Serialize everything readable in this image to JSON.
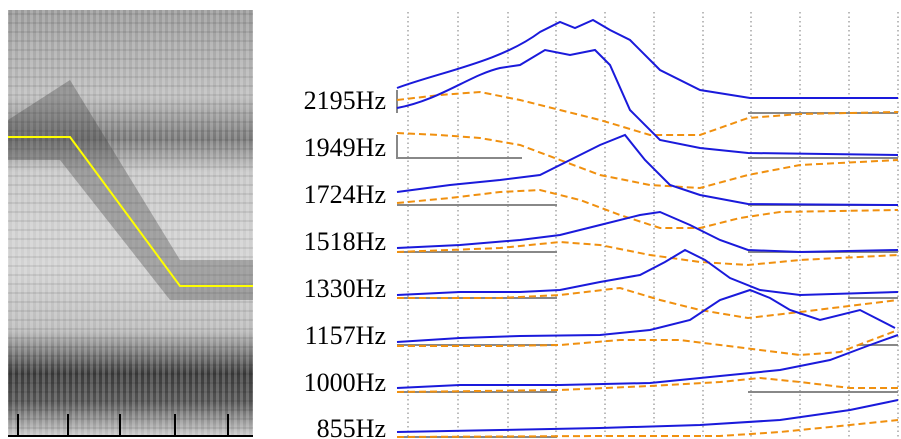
{
  "labels": [
    "2195Hz",
    "1949Hz",
    "1724Hz",
    "1518Hz",
    "1330Hz",
    "1157Hz",
    "1000Hz",
    "855Hz"
  ]
}
